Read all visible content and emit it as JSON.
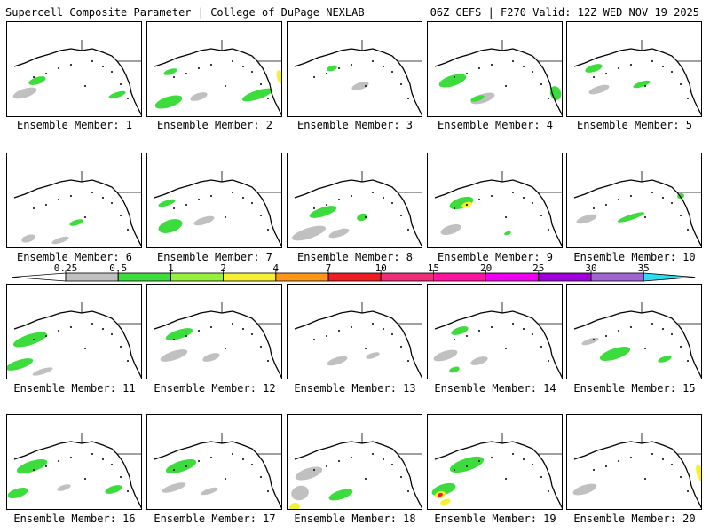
{
  "header": {
    "title": "Supercell Composite Parameter | College of DuPage NEXLAB",
    "run_info": "06Z GEFS | F270 Valid: 12Z WED NOV 19 2025"
  },
  "colorbar": {
    "ticks": [
      "0.25",
      "0.5",
      "1",
      "2",
      "4",
      "7",
      "10",
      "15",
      "20",
      "25",
      "30",
      "35"
    ],
    "colors": [
      "#c0c0c0",
      "#3cdc3c",
      "#96f03c",
      "#f5f032",
      "#ff9619",
      "#ee1c23",
      "#ee2d78",
      "#ff14a0",
      "#ee00ee",
      "#a000dc",
      "#a064d2",
      "#32dcf0"
    ]
  },
  "panels": [
    {
      "label": "Ensemble Member: 1"
    },
    {
      "label": "Ensemble Member: 2"
    },
    {
      "label": "Ensemble Member: 3"
    },
    {
      "label": "Ensemble Member: 4"
    },
    {
      "label": "Ensemble Member: 5"
    },
    {
      "label": "Ensemble Member: 6"
    },
    {
      "label": "Ensemble Member: 7"
    },
    {
      "label": "Ensemble Member: 8"
    },
    {
      "label": "Ensemble Member: 9"
    },
    {
      "label": "Ensemble Member: 10"
    },
    {
      "label": "Ensemble Member: 11"
    },
    {
      "label": "Ensemble Member: 12"
    },
    {
      "label": "Ensemble Member: 13"
    },
    {
      "label": "Ensemble Member: 14"
    },
    {
      "label": "Ensemble Member: 15"
    },
    {
      "label": "Ensemble Member: 16"
    },
    {
      "label": "Ensemble Member: 17"
    },
    {
      "label": "Ensemble Member: 18"
    },
    {
      "label": "Ensemble Member: 19"
    },
    {
      "label": "Ensemble Member: 20"
    }
  ]
}
